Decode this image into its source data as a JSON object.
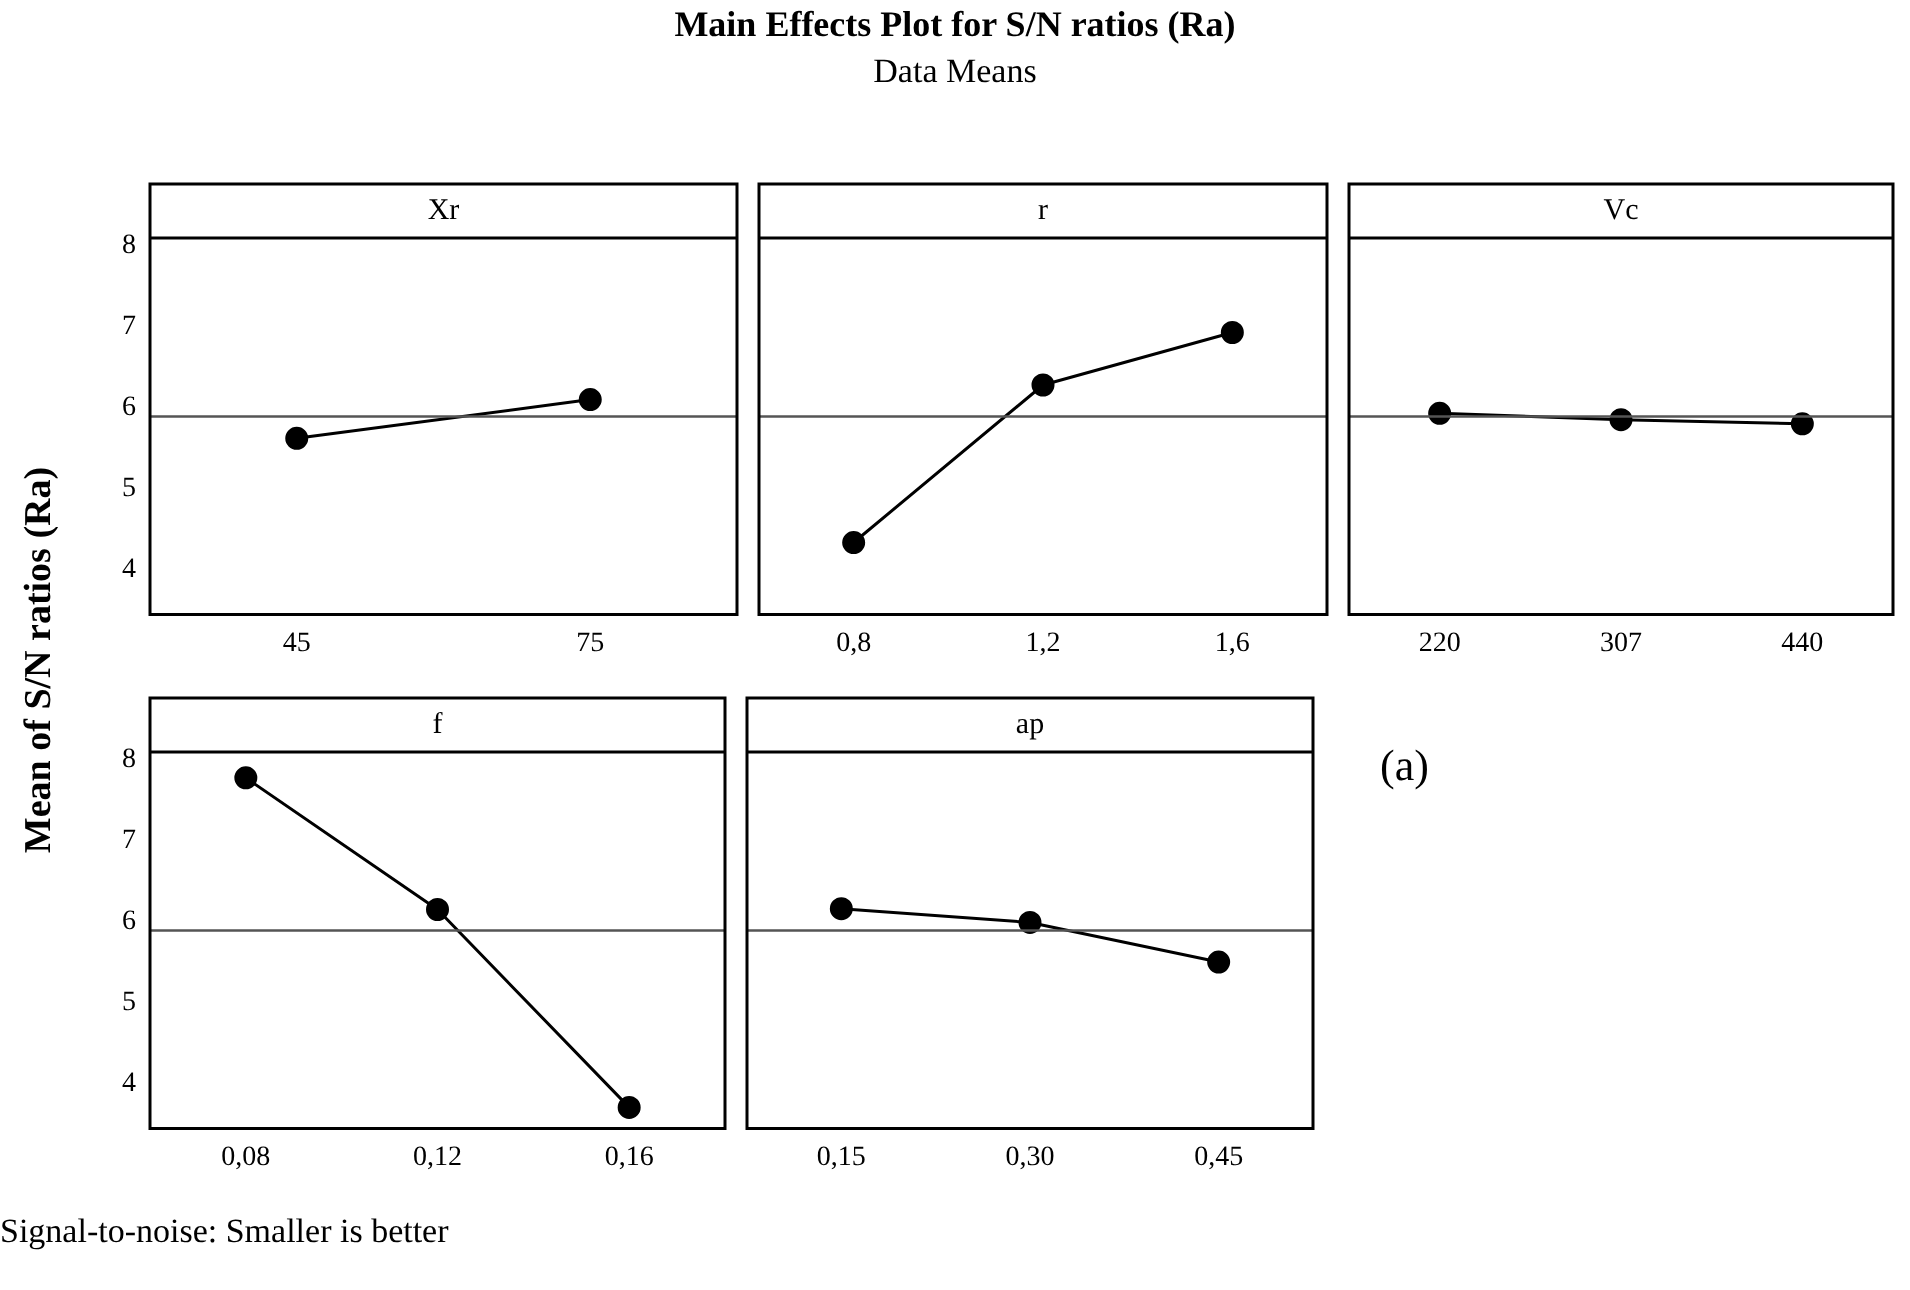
{
  "chart_data": [
    {
      "type": "line",
      "title": "Xr",
      "categories": [
        "45",
        "75"
      ],
      "values": [
        5.62,
        6.1
      ],
      "color": "#000000",
      "ylim": [
        3.44,
        8.1
      ],
      "yticks": [
        4,
        5,
        6,
        7,
        8
      ],
      "marker": "circle",
      "grid": false,
      "ref_lines": [
        {
          "axis": "y",
          "value": 5.89,
          "color": "#555555"
        }
      ]
    },
    {
      "type": "line",
      "title": "r",
      "categories": [
        "0,8",
        "1,2",
        "1,6"
      ],
      "values": [
        4.33,
        6.28,
        6.93
      ],
      "color": "#000000",
      "ylim": [
        3.44,
        8.1
      ],
      "yticks": [
        4,
        5,
        6,
        7,
        8
      ],
      "tick_labels": "x",
      "marker": "circle",
      "grid": false,
      "ref_lines": [
        {
          "axis": "y",
          "value": 5.89,
          "color": "#555555"
        }
      ]
    },
    {
      "type": "line",
      "title": "Vc",
      "categories": [
        "220",
        "307",
        "440"
      ],
      "values": [
        5.93,
        5.85,
        5.8
      ],
      "color": "#000000",
      "ylim": [
        3.44,
        8.1
      ],
      "yticks": [
        4,
        5,
        6,
        7,
        8
      ],
      "tick_labels": "x",
      "marker": "circle",
      "grid": false,
      "ref_lines": [
        {
          "axis": "y",
          "value": 5.89,
          "color": "#555555"
        }
      ]
    },
    {
      "type": "line",
      "title": "f",
      "categories": [
        "0,08",
        "0,12",
        "0,16"
      ],
      "values": [
        7.78,
        6.15,
        3.7
      ],
      "color": "#000000",
      "ylim": [
        3.44,
        8.1
      ],
      "yticks": [
        4,
        5,
        6,
        7,
        8
      ],
      "marker": "circle",
      "grid": false,
      "ref_lines": [
        {
          "axis": "y",
          "value": 5.89,
          "color": "#555555"
        }
      ]
    },
    {
      "type": "line",
      "title": "ap",
      "categories": [
        "0,15",
        "0,30",
        "0,45"
      ],
      "values": [
        6.16,
        5.99,
        5.5
      ],
      "color": "#000000",
      "ylim": [
        3.44,
        8.1
      ],
      "yticks": [
        4,
        5,
        6,
        7,
        8
      ],
      "tick_labels": "x",
      "marker": "circle",
      "grid": false,
      "ref_lines": [
        {
          "axis": "y",
          "value": 5.89,
          "color": "#555555"
        }
      ]
    },
    {
      "type": "other",
      "title": "Main Effects Plot for S/N ratios (Ra)",
      "subtitle": "Data Means",
      "ylabel": "Mean of S/N ratios (Ra)",
      "annotations": [
        "(a)",
        "Signal-to-noise: Smaller is better"
      ]
    }
  ]
}
